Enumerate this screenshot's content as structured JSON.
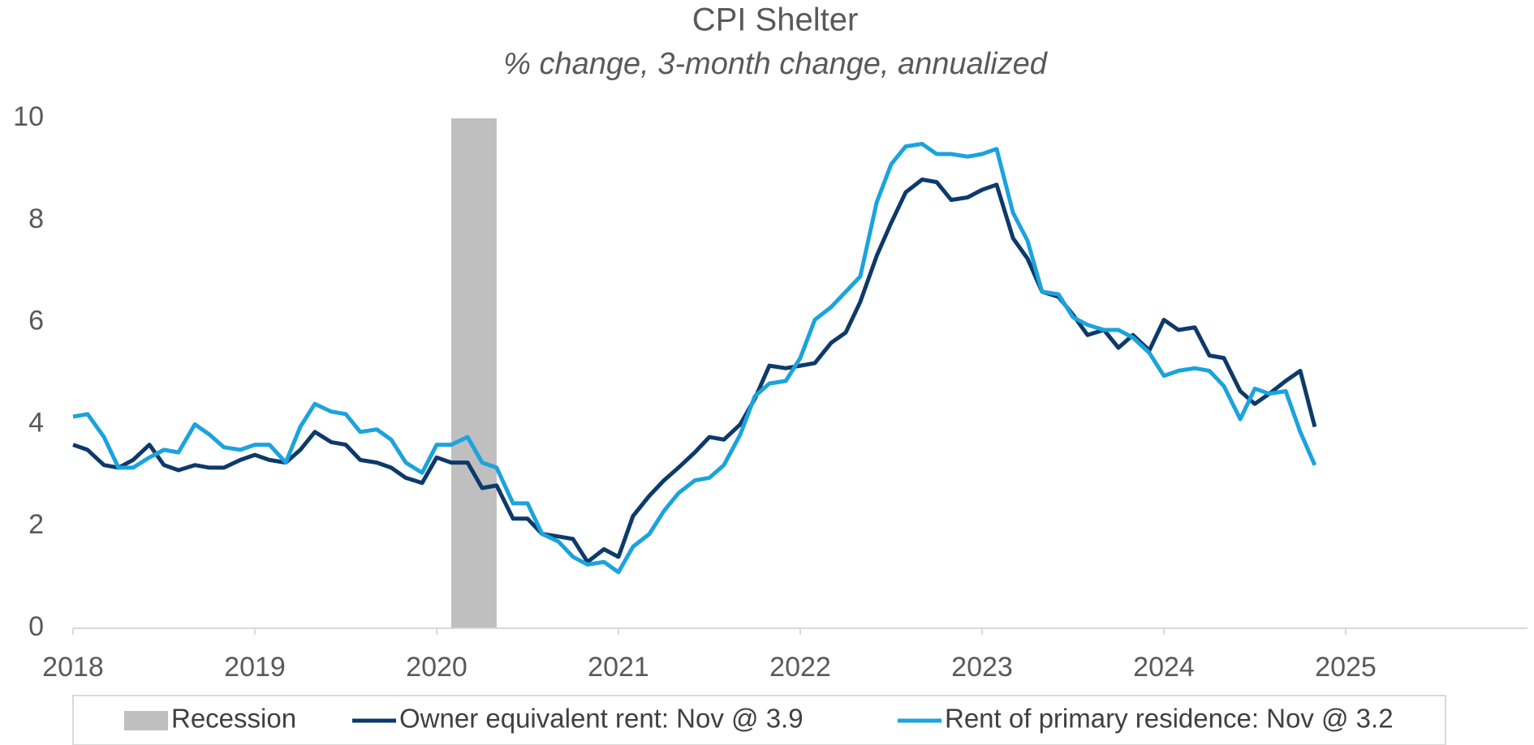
{
  "chart_data": {
    "type": "line",
    "title": "CPI Shelter",
    "subtitle": "% change, 3-month change, annualized",
    "x": [
      2018,
      2018.08,
      2018.17,
      2018.25,
      2018.33,
      2018.42,
      2018.5,
      2018.58,
      2018.67,
      2018.75,
      2018.83,
      2018.92,
      2019,
      2019.08,
      2019.17,
      2019.25,
      2019.33,
      2019.42,
      2019.5,
      2019.58,
      2019.67,
      2019.75,
      2019.83,
      2019.92,
      2020,
      2020.08,
      2020.17,
      2020.25,
      2020.33,
      2020.42,
      2020.5,
      2020.58,
      2020.67,
      2020.75,
      2020.83,
      2020.92,
      2021,
      2021.08,
      2021.17,
      2021.25,
      2021.33,
      2021.42,
      2021.5,
      2021.58,
      2021.67,
      2021.75,
      2021.83,
      2021.92,
      2022,
      2022.08,
      2022.17,
      2022.25,
      2022.33,
      2022.42,
      2022.5,
      2022.58,
      2022.67,
      2022.75,
      2022.83,
      2022.92,
      2023,
      2023.08,
      2023.17,
      2023.25,
      2023.33,
      2023.42,
      2023.5,
      2023.58,
      2023.67,
      2023.75,
      2023.83,
      2023.92,
      2024,
      2024.08,
      2024.17,
      2024.25,
      2024.33,
      2024.42,
      2024.5,
      2024.58,
      2024.67,
      2024.75,
      2024.83
    ],
    "series": [
      {
        "name": "Owner equivalent rent: Nov @ 3.9",
        "color": "#0d3a6a",
        "values": [
          3.6,
          3.5,
          3.2,
          3.15,
          3.3,
          3.6,
          3.2,
          3.1,
          3.2,
          3.15,
          3.15,
          3.3,
          3.4,
          3.3,
          3.25,
          3.5,
          3.85,
          3.65,
          3.6,
          3.3,
          3.25,
          3.15,
          2.95,
          2.85,
          3.35,
          3.25,
          3.25,
          2.75,
          2.8,
          2.15,
          2.15,
          1.85,
          1.8,
          1.75,
          1.3,
          1.55,
          1.4,
          2.2,
          2.6,
          2.9,
          3.15,
          3.45,
          3.75,
          3.7,
          4.0,
          4.5,
          5.15,
          5.1,
          5.15,
          5.2,
          5.6,
          5.8,
          6.4,
          7.3,
          7.95,
          8.55,
          8.8,
          8.75,
          8.4,
          8.45,
          8.6,
          8.7,
          7.65,
          7.25,
          6.6,
          6.5,
          6.15,
          5.75,
          5.85,
          5.5,
          5.75,
          5.45,
          6.05,
          5.85,
          5.9,
          5.35,
          5.3,
          4.65,
          4.4,
          4.6,
          4.85,
          5.05,
          3.95
        ]
      },
      {
        "name": "Rent of primary residence: Nov @ 3.2",
        "color": "#1ba3dd",
        "values": [
          4.15,
          4.2,
          3.75,
          3.15,
          3.15,
          3.35,
          3.5,
          3.45,
          4.0,
          3.8,
          3.55,
          3.5,
          3.6,
          3.6,
          3.25,
          3.95,
          4.4,
          4.25,
          4.2,
          3.85,
          3.9,
          3.7,
          3.25,
          3.05,
          3.6,
          3.6,
          3.75,
          3.25,
          3.15,
          2.45,
          2.45,
          1.85,
          1.7,
          1.4,
          1.25,
          1.3,
          1.1,
          1.6,
          1.85,
          2.3,
          2.65,
          2.9,
          2.95,
          3.2,
          3.8,
          4.55,
          4.8,
          4.85,
          5.3,
          6.05,
          6.3,
          6.6,
          6.9,
          8.35,
          9.1,
          9.45,
          9.5,
          9.3,
          9.3,
          9.25,
          9.3,
          9.4,
          8.15,
          7.6,
          6.6,
          6.55,
          6.1,
          5.95,
          5.85,
          5.85,
          5.7,
          5.4,
          4.95,
          5.05,
          5.1,
          5.05,
          4.75,
          4.1,
          4.7,
          4.6,
          4.65,
          3.85,
          3.2
        ]
      }
    ],
    "recession": {
      "name": "Recession",
      "start": 2020.08,
      "end": 2020.33,
      "color": "#bfbfbf"
    },
    "xlim": [
      2018,
      2026
    ],
    "xticks": [
      2018,
      2019,
      2020,
      2021,
      2022,
      2023,
      2024,
      2025
    ],
    "ylim": [
      0,
      10
    ],
    "yticks": [
      0,
      2,
      4,
      6,
      8,
      10
    ],
    "grid": false,
    "legend": "bottom"
  }
}
